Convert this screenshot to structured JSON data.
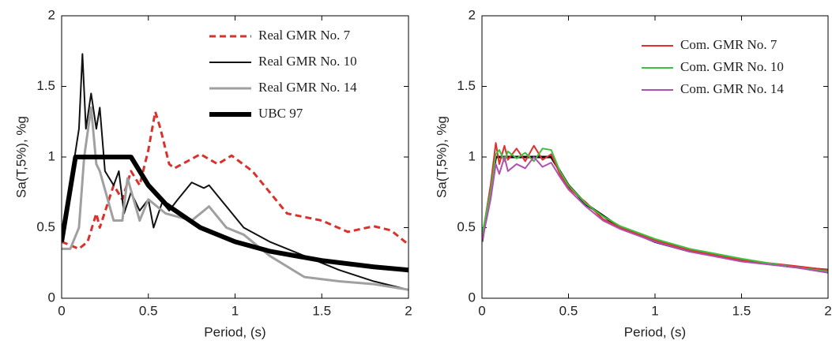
{
  "chart_data": [
    {
      "type": "line",
      "xlabel": "Period, (s)",
      "ylabel": "Sa(T,5%), %g",
      "xlim": [
        0,
        2
      ],
      "ylim": [
        0,
        2
      ],
      "xticks": [
        0,
        0.5,
        1,
        1.5,
        2
      ],
      "yticks": [
        0,
        0.5,
        1,
        1.5,
        2
      ],
      "series": [
        {
          "name": "Real GMR No. 7",
          "color": "#d9312b",
          "dash": true,
          "linewidth": 3,
          "x": [
            0,
            0.1,
            0.15,
            0.2,
            0.22,
            0.3,
            0.35,
            0.4,
            0.45,
            0.5,
            0.54,
            0.57,
            0.62,
            0.65,
            0.8,
            0.9,
            0.98,
            1.1,
            1.3,
            1.5,
            1.65,
            1.8,
            1.9,
            2
          ],
          "values": [
            0.4,
            0.35,
            0.4,
            0.6,
            0.5,
            0.8,
            0.7,
            0.9,
            0.8,
            1.05,
            1.32,
            1.2,
            0.95,
            0.92,
            1.02,
            0.95,
            1.01,
            0.9,
            0.6,
            0.55,
            0.47,
            0.51,
            0.48,
            0.38
          ]
        },
        {
          "name": "Real GMR No. 10",
          "color": "#111111",
          "linewidth": 2,
          "x": [
            0,
            0.05,
            0.1,
            0.12,
            0.14,
            0.17,
            0.2,
            0.22,
            0.25,
            0.3,
            0.33,
            0.36,
            0.4,
            0.45,
            0.5,
            0.53,
            0.58,
            0.62,
            0.67,
            0.75,
            0.82,
            0.85,
            0.95,
            1.05,
            1.2,
            1.4,
            1.6,
            1.8,
            2
          ],
          "values": [
            0.45,
            0.8,
            1.2,
            1.73,
            1.2,
            1.45,
            1.2,
            1.35,
            0.9,
            0.8,
            0.9,
            0.6,
            0.75,
            0.62,
            0.7,
            0.5,
            0.68,
            0.62,
            0.7,
            0.82,
            0.78,
            0.8,
            0.65,
            0.5,
            0.4,
            0.3,
            0.2,
            0.12,
            0.06
          ]
        },
        {
          "name": "Real GMR No. 14",
          "color": "#a0a0a0",
          "linewidth": 3,
          "x": [
            0,
            0.05,
            0.1,
            0.13,
            0.17,
            0.2,
            0.22,
            0.3,
            0.35,
            0.38,
            0.45,
            0.5,
            0.6,
            0.75,
            0.85,
            0.95,
            1.05,
            1.2,
            1.4,
            1.6,
            1.8,
            2
          ],
          "values": [
            0.35,
            0.35,
            0.5,
            1.0,
            1.35,
            0.95,
            0.9,
            0.55,
            0.55,
            0.85,
            0.55,
            0.7,
            0.6,
            0.55,
            0.65,
            0.5,
            0.45,
            0.3,
            0.15,
            0.12,
            0.1,
            0.06
          ]
        },
        {
          "name": "UBC 97",
          "color": "#000000",
          "linewidth": 6,
          "x": [
            0,
            0.08,
            0.4,
            0.5,
            0.6,
            0.8,
            1.0,
            1.2,
            1.5,
            1.8,
            2
          ],
          "values": [
            0.4,
            1.0,
            1.0,
            0.8,
            0.667,
            0.5,
            0.4,
            0.333,
            0.267,
            0.222,
            0.2
          ]
        }
      ]
    },
    {
      "type": "line",
      "xlabel": "Period, (s)",
      "ylabel": "Sa(T,5%), %g",
      "xlim": [
        0,
        2
      ],
      "ylim": [
        0,
        2
      ],
      "xticks": [
        0,
        0.5,
        1,
        1.5,
        2
      ],
      "yticks": [
        0,
        0.5,
        1,
        1.5,
        2
      ],
      "series": [
        {
          "color": "#000000",
          "linewidth": 3,
          "x": [
            0,
            0.08,
            0.4,
            0.5,
            0.6,
            0.8,
            1.0,
            1.2,
            1.5,
            1.8,
            2
          ],
          "values": [
            0.4,
            1.0,
            1.0,
            0.8,
            0.667,
            0.5,
            0.4,
            0.333,
            0.267,
            0.222,
            0.2
          ]
        },
        {
          "name": "Com. GMR No. 7",
          "color": "#e03030",
          "linewidth": 2,
          "x": [
            0,
            0.05,
            0.08,
            0.1,
            0.13,
            0.15,
            0.2,
            0.25,
            0.3,
            0.35,
            0.4,
            0.45,
            0.5,
            0.6,
            0.7,
            0.8,
            1.0,
            1.2,
            1.5,
            1.8,
            2
          ],
          "values": [
            0.42,
            0.8,
            1.1,
            0.95,
            1.08,
            0.98,
            1.06,
            0.97,
            1.08,
            0.98,
            1.02,
            0.88,
            0.78,
            0.68,
            0.56,
            0.5,
            0.41,
            0.34,
            0.27,
            0.23,
            0.2
          ]
        },
        {
          "name": "Com. GMR No. 10",
          "color": "#3cc23c",
          "linewidth": 2,
          "x": [
            0,
            0.05,
            0.08,
            0.1,
            0.13,
            0.15,
            0.2,
            0.25,
            0.3,
            0.35,
            0.4,
            0.45,
            0.5,
            0.6,
            0.7,
            0.8,
            1.0,
            1.2,
            1.5,
            1.8,
            2
          ],
          "values": [
            0.45,
            0.75,
            1.02,
            1.05,
            0.97,
            1.04,
            0.99,
            1.03,
            0.97,
            1.06,
            1.05,
            0.9,
            0.8,
            0.67,
            0.58,
            0.51,
            0.42,
            0.35,
            0.28,
            0.22,
            0.19
          ]
        },
        {
          "name": "Com. GMR No. 14",
          "color": "#b050b0",
          "linewidth": 2,
          "x": [
            0,
            0.05,
            0.08,
            0.1,
            0.13,
            0.15,
            0.2,
            0.25,
            0.3,
            0.35,
            0.4,
            0.45,
            0.5,
            0.6,
            0.7,
            0.8,
            1.0,
            1.2,
            1.5,
            1.8,
            2
          ],
          "values": [
            0.4,
            0.7,
            0.95,
            0.88,
            1.0,
            0.9,
            0.95,
            0.92,
            1.0,
            0.93,
            0.96,
            0.86,
            0.77,
            0.65,
            0.55,
            0.49,
            0.4,
            0.33,
            0.26,
            0.22,
            0.18
          ]
        }
      ]
    }
  ]
}
